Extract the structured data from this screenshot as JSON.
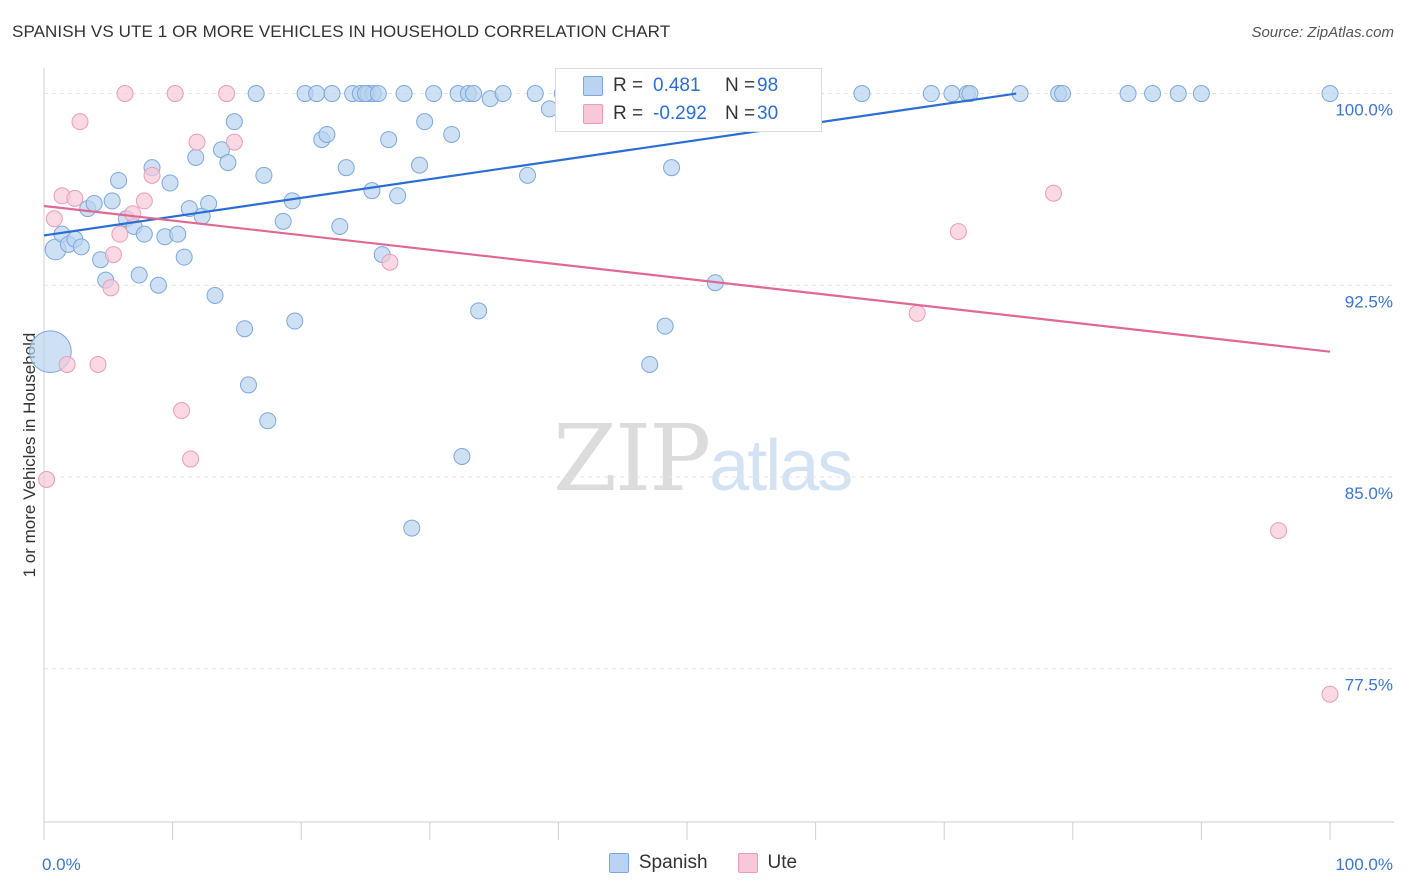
{
  "title": "SPANISH VS UTE 1 OR MORE VEHICLES IN HOUSEHOLD CORRELATION CHART",
  "source": "Source: ZipAtlas.com",
  "legend": {
    "r_label": "R =",
    "n_label": "N =",
    "spanish": {
      "r": "0.481",
      "n": "98"
    },
    "ute": {
      "r": "-0.292",
      "n": "30"
    }
  },
  "watermark": {
    "zip": "ZIP",
    "atlas": "atlas"
  },
  "colors": {
    "spanish_fill": "#b9d3f0",
    "spanish_stroke": "#7ea8db",
    "spanish_line": "#2a6ed3",
    "ute_fill": "#f8c8d8",
    "ute_stroke": "#ec9cb8",
    "ute_line": "#e06894",
    "tick_label": "#3a76d0",
    "grid": "#e4e4e4"
  },
  "chart_data": {
    "type": "scatter",
    "title": "SPANISH VS UTE 1 OR MORE VEHICLES IN HOUSEHOLD CORRELATION CHART",
    "xlabel": "",
    "ylabel": "1 or more Vehicles in Household",
    "xlim": [
      0,
      100
    ],
    "ylim": [
      71.5,
      101.0
    ],
    "x_tick_labels": [
      {
        "value": 0,
        "label": "0.0%"
      },
      {
        "value": 100,
        "label": "100.0%"
      }
    ],
    "y_ticks": [
      {
        "value": 100,
        "label": "100.0%"
      },
      {
        "value": 92.5,
        "label": "92.5%"
      },
      {
        "value": 85.0,
        "label": "85.0%"
      },
      {
        "value": 77.5,
        "label": "77.5%"
      }
    ],
    "x_minor_ticks": [
      0,
      10,
      20,
      30,
      40,
      50,
      60,
      70,
      80,
      90,
      100
    ],
    "grid": true,
    "legend_position": "top-center",
    "series": [
      {
        "name": "Spanish",
        "trend": {
          "x": [
            0,
            75.6
          ],
          "y": [
            94.45,
            100.0
          ]
        },
        "points": [
          {
            "x": 0.5,
            "y": 89.9,
            "s": 2.6
          },
          {
            "x": 0.9,
            "y": 93.9,
            "s": 1.3
          },
          {
            "x": 1.4,
            "y": 94.5
          },
          {
            "x": 1.9,
            "y": 94.1
          },
          {
            "x": 2.4,
            "y": 94.3
          },
          {
            "x": 2.9,
            "y": 94.0
          },
          {
            "x": 3.4,
            "y": 95.5
          },
          {
            "x": 3.9,
            "y": 95.7
          },
          {
            "x": 4.4,
            "y": 93.5
          },
          {
            "x": 4.8,
            "y": 92.7
          },
          {
            "x": 5.3,
            "y": 95.8
          },
          {
            "x": 5.8,
            "y": 96.6
          },
          {
            "x": 6.4,
            "y": 95.1
          },
          {
            "x": 7.0,
            "y": 94.8
          },
          {
            "x": 7.4,
            "y": 92.9
          },
          {
            "x": 7.8,
            "y": 94.5
          },
          {
            "x": 8.4,
            "y": 97.1
          },
          {
            "x": 8.9,
            "y": 92.5
          },
          {
            "x": 9.4,
            "y": 94.4
          },
          {
            "x": 9.8,
            "y": 96.5
          },
          {
            "x": 10.4,
            "y": 94.5
          },
          {
            "x": 10.9,
            "y": 93.6
          },
          {
            "x": 11.3,
            "y": 95.5
          },
          {
            "x": 11.8,
            "y": 97.5
          },
          {
            "x": 12.3,
            "y": 95.2
          },
          {
            "x": 12.8,
            "y": 95.7
          },
          {
            "x": 13.3,
            "y": 92.1
          },
          {
            "x": 13.8,
            "y": 97.8
          },
          {
            "x": 14.3,
            "y": 97.3
          },
          {
            "x": 14.8,
            "y": 98.9
          },
          {
            "x": 15.6,
            "y": 90.8
          },
          {
            "x": 15.9,
            "y": 88.6
          },
          {
            "x": 16.5,
            "y": 100.0
          },
          {
            "x": 17.1,
            "y": 96.8
          },
          {
            "x": 17.4,
            "y": 87.2
          },
          {
            "x": 18.6,
            "y": 95.0
          },
          {
            "x": 19.3,
            "y": 95.8
          },
          {
            "x": 19.5,
            "y": 91.1
          },
          {
            "x": 20.3,
            "y": 100.0
          },
          {
            "x": 21.2,
            "y": 100.0
          },
          {
            "x": 21.6,
            "y": 98.2
          },
          {
            "x": 22.0,
            "y": 98.4
          },
          {
            "x": 22.4,
            "y": 100.0
          },
          {
            "x": 23.0,
            "y": 94.8
          },
          {
            "x": 23.5,
            "y": 97.1
          },
          {
            "x": 24.0,
            "y": 100.0
          },
          {
            "x": 24.6,
            "y": 100.0
          },
          {
            "x": 25.2,
            "y": 100.0
          },
          {
            "x": 25.6,
            "y": 100.0
          },
          {
            "x": 25.0,
            "y": 100.0
          },
          {
            "x": 25.5,
            "y": 96.2
          },
          {
            "x": 26.0,
            "y": 100.0
          },
          {
            "x": 26.3,
            "y": 93.7
          },
          {
            "x": 26.8,
            "y": 98.2
          },
          {
            "x": 27.5,
            "y": 96.0
          },
          {
            "x": 28.0,
            "y": 100.0
          },
          {
            "x": 28.6,
            "y": 83.0
          },
          {
            "x": 29.2,
            "y": 97.2
          },
          {
            "x": 29.6,
            "y": 98.9
          },
          {
            "x": 30.3,
            "y": 100.0
          },
          {
            "x": 31.7,
            "y": 98.4
          },
          {
            "x": 32.2,
            "y": 100.0
          },
          {
            "x": 32.5,
            "y": 85.8
          },
          {
            "x": 33.0,
            "y": 100.0
          },
          {
            "x": 33.4,
            "y": 100.0
          },
          {
            "x": 33.8,
            "y": 91.5
          },
          {
            "x": 34.7,
            "y": 99.8
          },
          {
            "x": 35.7,
            "y": 100.0
          },
          {
            "x": 37.6,
            "y": 96.8
          },
          {
            "x": 38.2,
            "y": 100.0
          },
          {
            "x": 39.3,
            "y": 99.4
          },
          {
            "x": 40.3,
            "y": 100.0
          },
          {
            "x": 41.1,
            "y": 100.0
          },
          {
            "x": 42.4,
            "y": 100.0
          },
          {
            "x": 44.2,
            "y": 100.0
          },
          {
            "x": 44.9,
            "y": 100.0
          },
          {
            "x": 45.6,
            "y": 100.0
          },
          {
            "x": 47.1,
            "y": 89.4
          },
          {
            "x": 48.3,
            "y": 90.9
          },
          {
            "x": 48.8,
            "y": 97.1
          },
          {
            "x": 51.4,
            "y": 100.0
          },
          {
            "x": 52.2,
            "y": 92.6
          },
          {
            "x": 53.5,
            "y": 100.0
          },
          {
            "x": 55.4,
            "y": 100.0
          },
          {
            "x": 56.3,
            "y": 100.0
          },
          {
            "x": 57.2,
            "y": 100.0
          },
          {
            "x": 63.6,
            "y": 100.0
          },
          {
            "x": 69.0,
            "y": 100.0
          },
          {
            "x": 70.6,
            "y": 100.0
          },
          {
            "x": 71.8,
            "y": 100.0
          },
          {
            "x": 75.9,
            "y": 100.0
          },
          {
            "x": 78.9,
            "y": 100.0
          },
          {
            "x": 79.2,
            "y": 100.0
          },
          {
            "x": 84.3,
            "y": 100.0
          },
          {
            "x": 86.2,
            "y": 100.0
          },
          {
            "x": 88.2,
            "y": 100.0
          },
          {
            "x": 90.0,
            "y": 100.0
          },
          {
            "x": 100.0,
            "y": 100.0
          },
          {
            "x": 72.0,
            "y": 100.0
          }
        ]
      },
      {
        "name": "Ute",
        "trend": {
          "x": [
            0,
            100
          ],
          "y": [
            95.6,
            89.9
          ]
        },
        "points": [
          {
            "x": 0.2,
            "y": 84.9
          },
          {
            "x": 0.8,
            "y": 95.1
          },
          {
            "x": 1.4,
            "y": 96.0
          },
          {
            "x": 1.8,
            "y": 89.4
          },
          {
            "x": 2.4,
            "y": 95.9
          },
          {
            "x": 2.8,
            "y": 98.9
          },
          {
            "x": 4.2,
            "y": 89.4
          },
          {
            "x": 5.2,
            "y": 92.4
          },
          {
            "x": 5.4,
            "y": 93.7
          },
          {
            "x": 5.9,
            "y": 94.5
          },
          {
            "x": 6.9,
            "y": 95.3
          },
          {
            "x": 7.8,
            "y": 95.8
          },
          {
            "x": 8.4,
            "y": 96.8
          },
          {
            "x": 10.7,
            "y": 87.6
          },
          {
            "x": 11.4,
            "y": 85.7
          },
          {
            "x": 11.9,
            "y": 98.1
          },
          {
            "x": 14.8,
            "y": 98.1
          },
          {
            "x": 6.3,
            "y": 100.0
          },
          {
            "x": 10.2,
            "y": 100.0
          },
          {
            "x": 14.2,
            "y": 100.0
          },
          {
            "x": 26.9,
            "y": 93.4
          },
          {
            "x": 67.9,
            "y": 91.4
          },
          {
            "x": 71.1,
            "y": 94.6
          },
          {
            "x": 78.5,
            "y": 96.1
          },
          {
            "x": 96.0,
            "y": 82.9
          },
          {
            "x": 100.0,
            "y": 76.5
          }
        ]
      }
    ]
  },
  "bottom_legend": [
    {
      "label": "Spanish"
    },
    {
      "label": "Ute"
    }
  ]
}
